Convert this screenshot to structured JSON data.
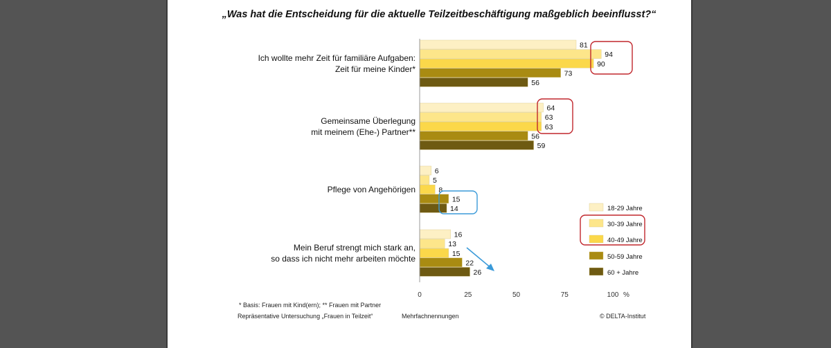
{
  "chart_data": {
    "type": "bar",
    "orientation": "horizontal",
    "title": "„Was hat die Entscheidung für die aktuelle Teilzeitbeschäftigung maßgeblich beeinflusst?“",
    "categories": [
      [
        "Ich wollte mehr Zeit für familiäre Aufgaben:",
        "Zeit für meine Kinder*"
      ],
      [
        "Gemeinsame Überlegung",
        "mit meinem (Ehe-) Partner**"
      ],
      [
        "Pflege von Angehörigen"
      ],
      [
        "Mein Beruf strengt mich stark an,",
        "so dass ich nicht mehr arbeiten möchte"
      ]
    ],
    "series": [
      {
        "name": "18-29 Jahre",
        "color": "#fdf0c4",
        "values": [
          81,
          64,
          6,
          16
        ]
      },
      {
        "name": "30-39 Jahre",
        "color": "#fde68a",
        "values": [
          94,
          63,
          5,
          13
        ]
      },
      {
        "name": "40-49 Jahre",
        "color": "#fbd84a",
        "values": [
          90,
          63,
          8,
          15
        ]
      },
      {
        "name": "50-59 Jahre",
        "color": "#a98b12",
        "values": [
          73,
          56,
          15,
          22
        ]
      },
      {
        "name": "60 + Jahre",
        "color": "#6e5a12",
        "values": [
          56,
          59,
          14,
          26
        ]
      }
    ],
    "xlim": [
      0,
      100
    ],
    "xticks": [
      "0",
      "25",
      "50",
      "75",
      "100"
    ],
    "xunit": "%",
    "legend_position": "bottom-right",
    "grid": false
  },
  "annotations": {
    "highlight_color_red": "#c0262c",
    "highlight_color_blue": "#3a9ad9",
    "arrow_color": "#3a9ad9"
  },
  "footer": {
    "basis": "* Basis: Frauen mit Kind(ern); ** Frauen mit Partner",
    "source": "Repräsentative Untersuchung „Frauen in Teilzeit“",
    "note": "Mehrfachnennungen",
    "copyright": "© DELTA-Institut"
  }
}
